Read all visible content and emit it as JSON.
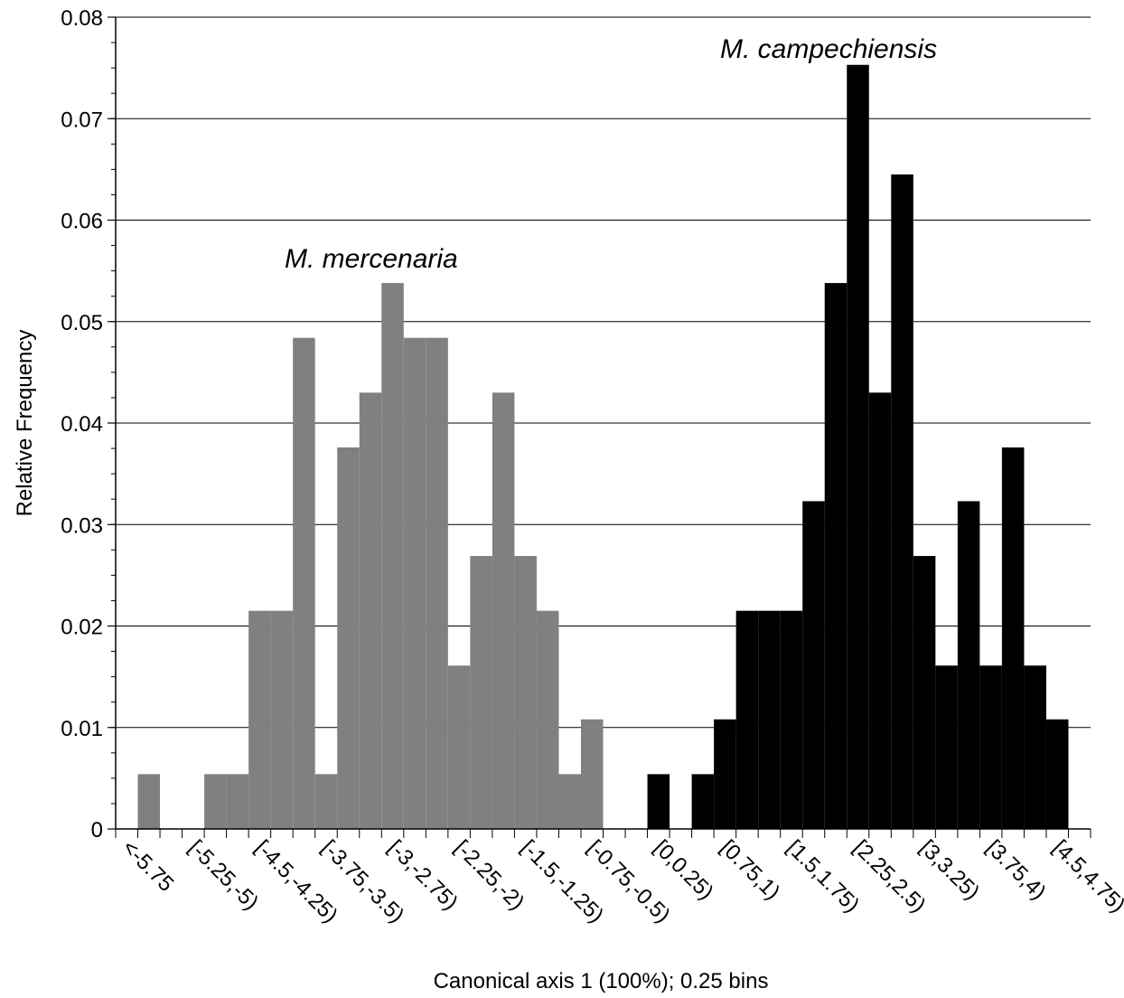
{
  "chart_data": {
    "type": "bar",
    "title": "",
    "xlabel": "Canonical axis 1 (100%); 0.25 bins",
    "ylabel": "Relative Frequency",
    "ylim": [
      0,
      0.08
    ],
    "yticks": [
      "0",
      "0.01",
      "0.02",
      "0.03",
      "0.04",
      "0.05",
      "0.06",
      "0.07",
      "0.08"
    ],
    "grid": true,
    "bin_width": 0.25,
    "x_range": [
      -6.0,
      5.0
    ],
    "x_tick_labels": [
      {
        "label": "<-5.75",
        "bin_start": -6.0
      },
      {
        "label": "[-5.25,-5)",
        "bin_start": -5.25
      },
      {
        "label": "[-4.5,-4.25)",
        "bin_start": -4.5
      },
      {
        "label": "[-3.75,-3.5)",
        "bin_start": -3.75
      },
      {
        "label": "[-3,-2.75)",
        "bin_start": -3.0
      },
      {
        "label": "[-2.25,-2)",
        "bin_start": -2.25
      },
      {
        "label": "[-1.5,-1.25)",
        "bin_start": -1.5
      },
      {
        "label": "[-0.75,-0.5)",
        "bin_start": -0.75
      },
      {
        "label": "[0,0.25)",
        "bin_start": 0.0
      },
      {
        "label": "[0.75,1)",
        "bin_start": 0.75
      },
      {
        "label": "[1.5,1.75)",
        "bin_start": 1.5
      },
      {
        "label": "[2.25,2.5)",
        "bin_start": 2.25
      },
      {
        "label": "[3,3.25)",
        "bin_start": 3.0
      },
      {
        "label": "[3.75,4)",
        "bin_start": 3.75
      },
      {
        "label": "[4.5,4.75)",
        "bin_start": 4.5
      }
    ],
    "series": [
      {
        "name": "M. mercenaria",
        "color": "#808080",
        "bins": [
          {
            "x": -5.75,
            "y": 0.0054
          },
          {
            "x": -5.5,
            "y": 0
          },
          {
            "x": -5.25,
            "y": 0
          },
          {
            "x": -5.0,
            "y": 0.0054
          },
          {
            "x": -4.75,
            "y": 0.0054
          },
          {
            "x": -4.5,
            "y": 0.0215
          },
          {
            "x": -4.25,
            "y": 0.0215
          },
          {
            "x": -4.0,
            "y": 0.0484
          },
          {
            "x": -3.75,
            "y": 0.0054
          },
          {
            "x": -3.5,
            "y": 0.0376
          },
          {
            "x": -3.25,
            "y": 0.043
          },
          {
            "x": -3.0,
            "y": 0.0538
          },
          {
            "x": -2.75,
            "y": 0.0484
          },
          {
            "x": -2.5,
            "y": 0.0484
          },
          {
            "x": -2.25,
            "y": 0.0161
          },
          {
            "x": -2.0,
            "y": 0.0269
          },
          {
            "x": -1.75,
            "y": 0.043
          },
          {
            "x": -1.5,
            "y": 0.0269
          },
          {
            "x": -1.25,
            "y": 0.0215
          },
          {
            "x": -1.0,
            "y": 0.0054
          },
          {
            "x": -0.75,
            "y": 0.0108
          }
        ]
      },
      {
        "name": "M. campechiensis",
        "color": "#000000",
        "bins": [
          {
            "x": 0.0,
            "y": 0.0054
          },
          {
            "x": 0.25,
            "y": 0
          },
          {
            "x": 0.5,
            "y": 0.0054
          },
          {
            "x": 0.75,
            "y": 0.0108
          },
          {
            "x": 1.0,
            "y": 0.0215
          },
          {
            "x": 1.25,
            "y": 0.0215
          },
          {
            "x": 1.5,
            "y": 0.0215
          },
          {
            "x": 1.75,
            "y": 0.0323
          },
          {
            "x": 2.0,
            "y": 0.0538
          },
          {
            "x": 2.25,
            "y": 0.0753
          },
          {
            "x": 2.5,
            "y": 0.043
          },
          {
            "x": 2.75,
            "y": 0.0645
          },
          {
            "x": 3.0,
            "y": 0.0269
          },
          {
            "x": 3.25,
            "y": 0.0161
          },
          {
            "x": 3.5,
            "y": 0.0323
          },
          {
            "x": 3.75,
            "y": 0.0161
          },
          {
            "x": 4.0,
            "y": 0.0376
          },
          {
            "x": 4.25,
            "y": 0.0161
          },
          {
            "x": 4.5,
            "y": 0.0108
          }
        ]
      }
    ]
  }
}
